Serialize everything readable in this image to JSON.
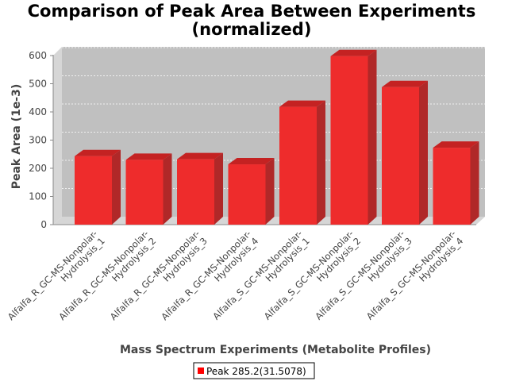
{
  "chart_data": {
    "type": "bar",
    "title": "Comparison of Peak Area Between Experiments (normalized)",
    "title_lines": [
      "Comparison of Peak Area Between Experiments",
      "(normalized)"
    ],
    "xlabel": "Mass Spectrum Experiments (Metabolite Profiles)",
    "ylabel": "Peak Area (1e-3)",
    "ylim": [
      0,
      600
    ],
    "yticks": [
      0,
      100,
      200,
      300,
      400,
      500,
      600
    ],
    "grid": true,
    "categories": [
      "Alfalfa_R_GC-MS-Nonpolar-Hydrolysis_1",
      "Alfalfa_R_GC-MS-Nonpolar-Hydrolysis_2",
      "Alfalfa_R_GC-MS-Nonpolar-Hydrolysis_3",
      "Alfalfa_R_GC-MS-Nonpolar-Hydrolysis_4",
      "Alfalfa_S_GC-MS-Nonpolar-Hydrolysis_1",
      "Alfalfa_S_GC-MS-Nonpolar-Hydrolysis_2",
      "Alfalfa_S_GC-MS-Nonpolar-Hydrolysis_3",
      "Alfalfa_S_GC-MS-Nonpolar-Hydrolysis_4"
    ],
    "category_lines": [
      [
        "Alfalfa_R_GC-MS-Nonpolar-",
        "Hydrolysis_1"
      ],
      [
        "Alfalfa_R_GC-MS-Nonpolar-",
        "Hydrolysis_2"
      ],
      [
        "Alfalfa_R_GC-MS-Nonpolar-",
        "Hydrolysis_3"
      ],
      [
        "Alfalfa_R_GC-MS-Nonpolar-",
        "Hydrolysis_4"
      ],
      [
        "Alfalfa_S_GC-MS-Nonpolar-",
        "Hydrolysis_1"
      ],
      [
        "Alfalfa_S_GC-MS-Nonpolar-",
        "Hydrolysis_2"
      ],
      [
        "Alfalfa_S_GC-MS-Nonpolar-",
        "Hydrolysis_3"
      ],
      [
        "Alfalfa_S_GC-MS-Nonpolar-",
        "Hydrolysis_4"
      ]
    ],
    "series": [
      {
        "name": "Peak 285.2(31.5078)",
        "color": "#ff0000",
        "values": [
          243,
          230,
          232,
          214,
          418,
          598,
          488,
          273
        ]
      }
    ],
    "legend_position": "bottom",
    "style": "3d-bar"
  }
}
